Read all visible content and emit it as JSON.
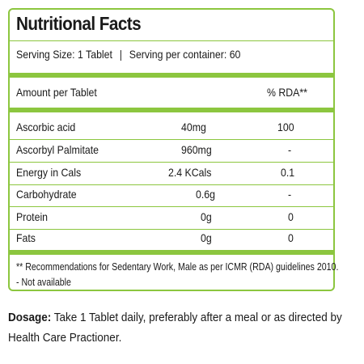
{
  "panel": {
    "title": "Nutritional Facts",
    "serving_size": "Serving Size: 1 Tablet",
    "separator": "|",
    "serving_per_container": "Serving per container: 60"
  },
  "table": {
    "header_label": "Amount per Tablet",
    "header_rda": "% RDA**",
    "rows": [
      {
        "name": "Ascorbic acid",
        "amount": "40mg",
        "rda": "100"
      },
      {
        "name": "Ascorbyl Palmitate",
        "amount": "960mg",
        "rda": "-"
      },
      {
        "name": "Energy in Cals",
        "amount": "2.4 KCals",
        "rda": "0.1"
      },
      {
        "name": "Carbohydrate",
        "amount": "0.6g",
        "rda": "-"
      },
      {
        "name": "Protein",
        "amount": "0g",
        "rda": "0"
      },
      {
        "name": "Fats",
        "amount": "0g",
        "rda": "0"
      }
    ]
  },
  "footnotes": {
    "line1": "** Recommendations for Sedentary Work, Male as per ICMR (RDA) guidelines 2010.",
    "line2": "- Not available"
  },
  "dosage": {
    "label": "Dosage:",
    "text": " Take 1 Tablet daily, preferably after a meal or as directed by Health Care Practioner."
  },
  "colors": {
    "border": "#8cc63f",
    "text": "#1a1a1a"
  }
}
